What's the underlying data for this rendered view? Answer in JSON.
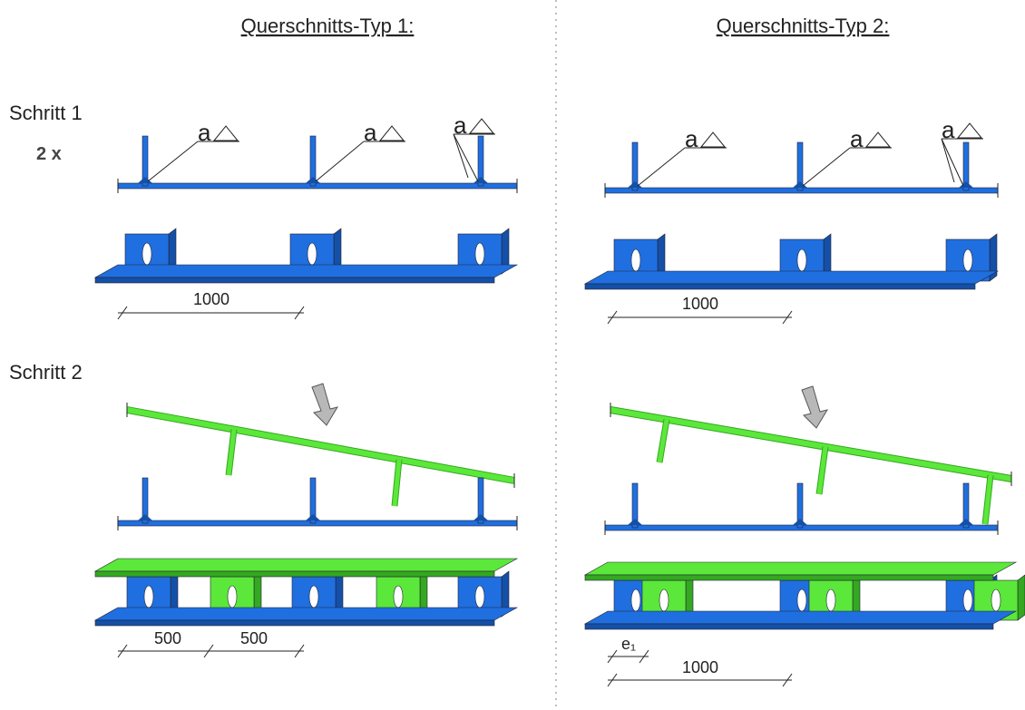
{
  "columns": [
    {
      "title": "Querschnitts-Typ 1:",
      "weld_labels": [
        "a",
        "a",
        "a"
      ],
      "step1_dimensions": [
        "1000"
      ],
      "step2_dimensions": [
        "500",
        "500"
      ]
    },
    {
      "title": "Querschnitts-Typ 2:",
      "weld_labels": [
        "a",
        "a",
        "a"
      ],
      "step1_dimensions": [
        "1000"
      ],
      "step2_dimensions": [
        "e₁",
        "1000"
      ]
    }
  ],
  "steps": [
    {
      "label": "Schritt 1",
      "note": "2 x"
    },
    {
      "label": "Schritt 2"
    }
  ]
}
